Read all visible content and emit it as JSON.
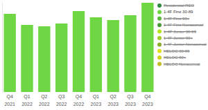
{
  "chart_data": {
    "type": "bar",
    "categories": [
      "Q4 2021",
      "Q1 2022",
      "Q2 2022",
      "Q3 2022",
      "Q4 2022",
      "Q1 2023",
      "Q2 2023",
      "Q3 2023",
      "Q4 2023"
    ],
    "series": [
      {
        "name": "Residential REO",
        "color": "#2e8b3e",
        "values": [
          null,
          null,
          null,
          null,
          null,
          null,
          null,
          null,
          null
        ]
      },
      {
        "name": "1-4F First 30-89",
        "color": "#6fd644",
        "values": [
          113,
          97,
          95,
          99,
          117,
          108,
          104,
          111,
          129
        ]
      },
      {
        "name": "1-4F First 90+",
        "color": "#5ab83a",
        "values": [
          null,
          null,
          null,
          null,
          null,
          null,
          null,
          null,
          null
        ]
      },
      {
        "name": "1-4F First Nonaccrual",
        "color": "#4a9a35",
        "values": [
          null,
          null,
          null,
          null,
          null,
          null,
          null,
          null,
          null
        ]
      },
      {
        "name": "1-4F Junior 30-89",
        "color": "#b7e41e",
        "values": [
          null,
          null,
          null,
          null,
          null,
          null,
          null,
          null,
          null
        ]
      },
      {
        "name": "1-4F Junior 90+",
        "color": "#a2cd28",
        "values": [
          null,
          null,
          null,
          null,
          null,
          null,
          null,
          null,
          null
        ]
      },
      {
        "name": "1-4F Junior Nonaccrual",
        "color": "#8eae2a",
        "values": [
          null,
          null,
          null,
          null,
          null,
          null,
          null,
          null,
          null
        ]
      },
      {
        "name": "HELOC 30-89",
        "color": "#e2e01a",
        "values": [
          null,
          null,
          null,
          null,
          null,
          null,
          null,
          null,
          null
        ]
      },
      {
        "name": "HELOC 90+",
        "color": "#d3d21f",
        "values": [
          null,
          null,
          null,
          null,
          null,
          null,
          null,
          null,
          null
        ]
      },
      {
        "name": "HELOC Nonaccrual",
        "color": "#c4bd2a",
        "values": [
          null,
          null,
          null,
          null,
          null,
          null,
          null,
          null,
          null
        ]
      }
    ],
    "ylim": [
      0,
      130
    ],
    "tick_labels": "x",
    "legend": "right"
  }
}
